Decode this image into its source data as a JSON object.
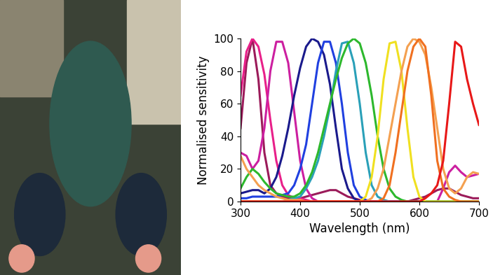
{
  "chart_data": {
    "type": "line",
    "xlabel": "Wavelength (nm)",
    "ylabel": "Normalised sensitivity",
    "x": [
      300,
      310,
      320,
      330,
      340,
      350,
      360,
      370,
      380,
      390,
      400,
      410,
      420,
      430,
      440,
      450,
      460,
      470,
      480,
      490,
      500,
      510,
      520,
      530,
      540,
      550,
      560,
      570,
      580,
      590,
      600,
      610,
      620,
      630,
      640,
      650,
      660,
      670,
      680,
      690,
      700
    ],
    "xlim": [
      300,
      700
    ],
    "xticks": [
      300,
      400,
      500,
      600,
      700
    ],
    "ylim": [
      0,
      100
    ],
    "yticks": [
      0,
      20,
      40,
      60,
      80,
      100
    ],
    "grid": false,
    "series": [
      {
        "color": "#9b1b5a",
        "values": [
          45,
          85,
          100,
          75,
          30,
          10,
          5,
          3,
          2,
          2,
          2,
          3,
          4,
          5,
          6,
          7,
          7,
          5,
          3,
          2,
          1,
          0,
          0,
          0,
          0,
          0,
          0,
          0,
          0,
          1,
          2,
          3,
          5,
          7,
          8,
          8,
          6,
          4,
          3,
          2,
          2
        ]
      },
      {
        "color": "#e8208a",
        "values": [
          65,
          92,
          100,
          95,
          78,
          50,
          25,
          10,
          4,
          2,
          2,
          1,
          0,
          0,
          0,
          0,
          0,
          0,
          0,
          0,
          0,
          0,
          0,
          0,
          0,
          0,
          0,
          0,
          0,
          0,
          0,
          0,
          0,
          0,
          0,
          0,
          0,
          0,
          0,
          0,
          0
        ]
      },
      {
        "color": "#cc1fa0",
        "values": [
          30,
          28,
          20,
          25,
          45,
          80,
          98,
          98,
          85,
          55,
          25,
          8,
          2,
          0,
          0,
          0,
          0,
          0,
          0,
          0,
          0,
          0,
          0,
          0,
          0,
          0,
          0,
          0,
          0,
          0,
          0,
          0,
          0,
          0,
          8,
          18,
          22,
          18,
          15,
          16,
          17
        ]
      },
      {
        "color": "#1a1a8c",
        "values": [
          5,
          6,
          7,
          7,
          5,
          8,
          15,
          28,
          45,
          65,
          82,
          95,
          100,
          98,
          90,
          72,
          45,
          20,
          8,
          2,
          0,
          0,
          0,
          0,
          0,
          0,
          0,
          0,
          0,
          0,
          0,
          0,
          0,
          0,
          0,
          0,
          0,
          0,
          0,
          0,
          0
        ]
      },
      {
        "color": "#2040e0",
        "values": [
          2,
          2,
          3,
          3,
          3,
          3,
          3,
          4,
          5,
          10,
          20,
          35,
          60,
          85,
          98,
          98,
          85,
          60,
          30,
          10,
          3,
          1,
          0,
          0,
          0,
          0,
          0,
          0,
          0,
          0,
          0,
          0,
          0,
          0,
          0,
          0,
          0,
          0,
          0,
          0,
          0
        ]
      },
      {
        "color": "#2aa0b8",
        "values": [
          0,
          0,
          0,
          0,
          0,
          0,
          0,
          0,
          1,
          2,
          3,
          8,
          15,
          25,
          40,
          58,
          80,
          97,
          98,
          85,
          60,
          30,
          10,
          3,
          1,
          0,
          0,
          0,
          0,
          0,
          0,
          0,
          0,
          0,
          0,
          0,
          0,
          0,
          0,
          0,
          0
        ]
      },
      {
        "color": "#2db82d",
        "values": [
          8,
          15,
          20,
          17,
          12,
          8,
          5,
          4,
          3,
          3,
          5,
          10,
          18,
          30,
          45,
          60,
          75,
          88,
          97,
          100,
          97,
          85,
          65,
          40,
          20,
          8,
          3,
          1,
          0,
          0,
          0,
          0,
          0,
          0,
          0,
          0,
          0,
          0,
          0,
          0,
          0
        ]
      },
      {
        "color": "#f0e020",
        "values": [
          0,
          0,
          0,
          0,
          0,
          0,
          0,
          0,
          0,
          0,
          0,
          0,
          0,
          0,
          0,
          0,
          0,
          0,
          0,
          0,
          0,
          3,
          15,
          40,
          75,
          97,
          98,
          80,
          45,
          15,
          3,
          0,
          0,
          0,
          0,
          0,
          0,
          0,
          0,
          0,
          0
        ]
      },
      {
        "color": "#f4a050",
        "values": [
          28,
          20,
          15,
          10,
          7,
          5,
          3,
          2,
          1,
          1,
          1,
          0,
          0,
          0,
          0,
          0,
          0,
          0,
          0,
          0,
          0,
          0,
          2,
          8,
          20,
          40,
          60,
          80,
          95,
          100,
          98,
          90,
          70,
          45,
          20,
          8,
          5,
          8,
          15,
          18,
          17
        ]
      },
      {
        "color": "#f07020",
        "values": [
          0,
          0,
          0,
          0,
          0,
          0,
          0,
          0,
          0,
          0,
          0,
          0,
          0,
          0,
          0,
          0,
          0,
          0,
          0,
          0,
          0,
          0,
          0,
          0,
          2,
          10,
          30,
          55,
          80,
          95,
          100,
          95,
          65,
          25,
          8,
          3,
          1,
          0,
          0,
          0,
          0
        ]
      },
      {
        "color": "#e81818",
        "values": [
          0,
          0,
          0,
          0,
          0,
          0,
          0,
          0,
          0,
          0,
          0,
          0,
          0,
          0,
          0,
          0,
          0,
          0,
          0,
          0,
          0,
          0,
          0,
          0,
          0,
          0,
          0,
          0,
          0,
          0,
          0,
          2,
          5,
          10,
          25,
          60,
          98,
          95,
          75,
          60,
          47
        ]
      }
    ]
  }
}
